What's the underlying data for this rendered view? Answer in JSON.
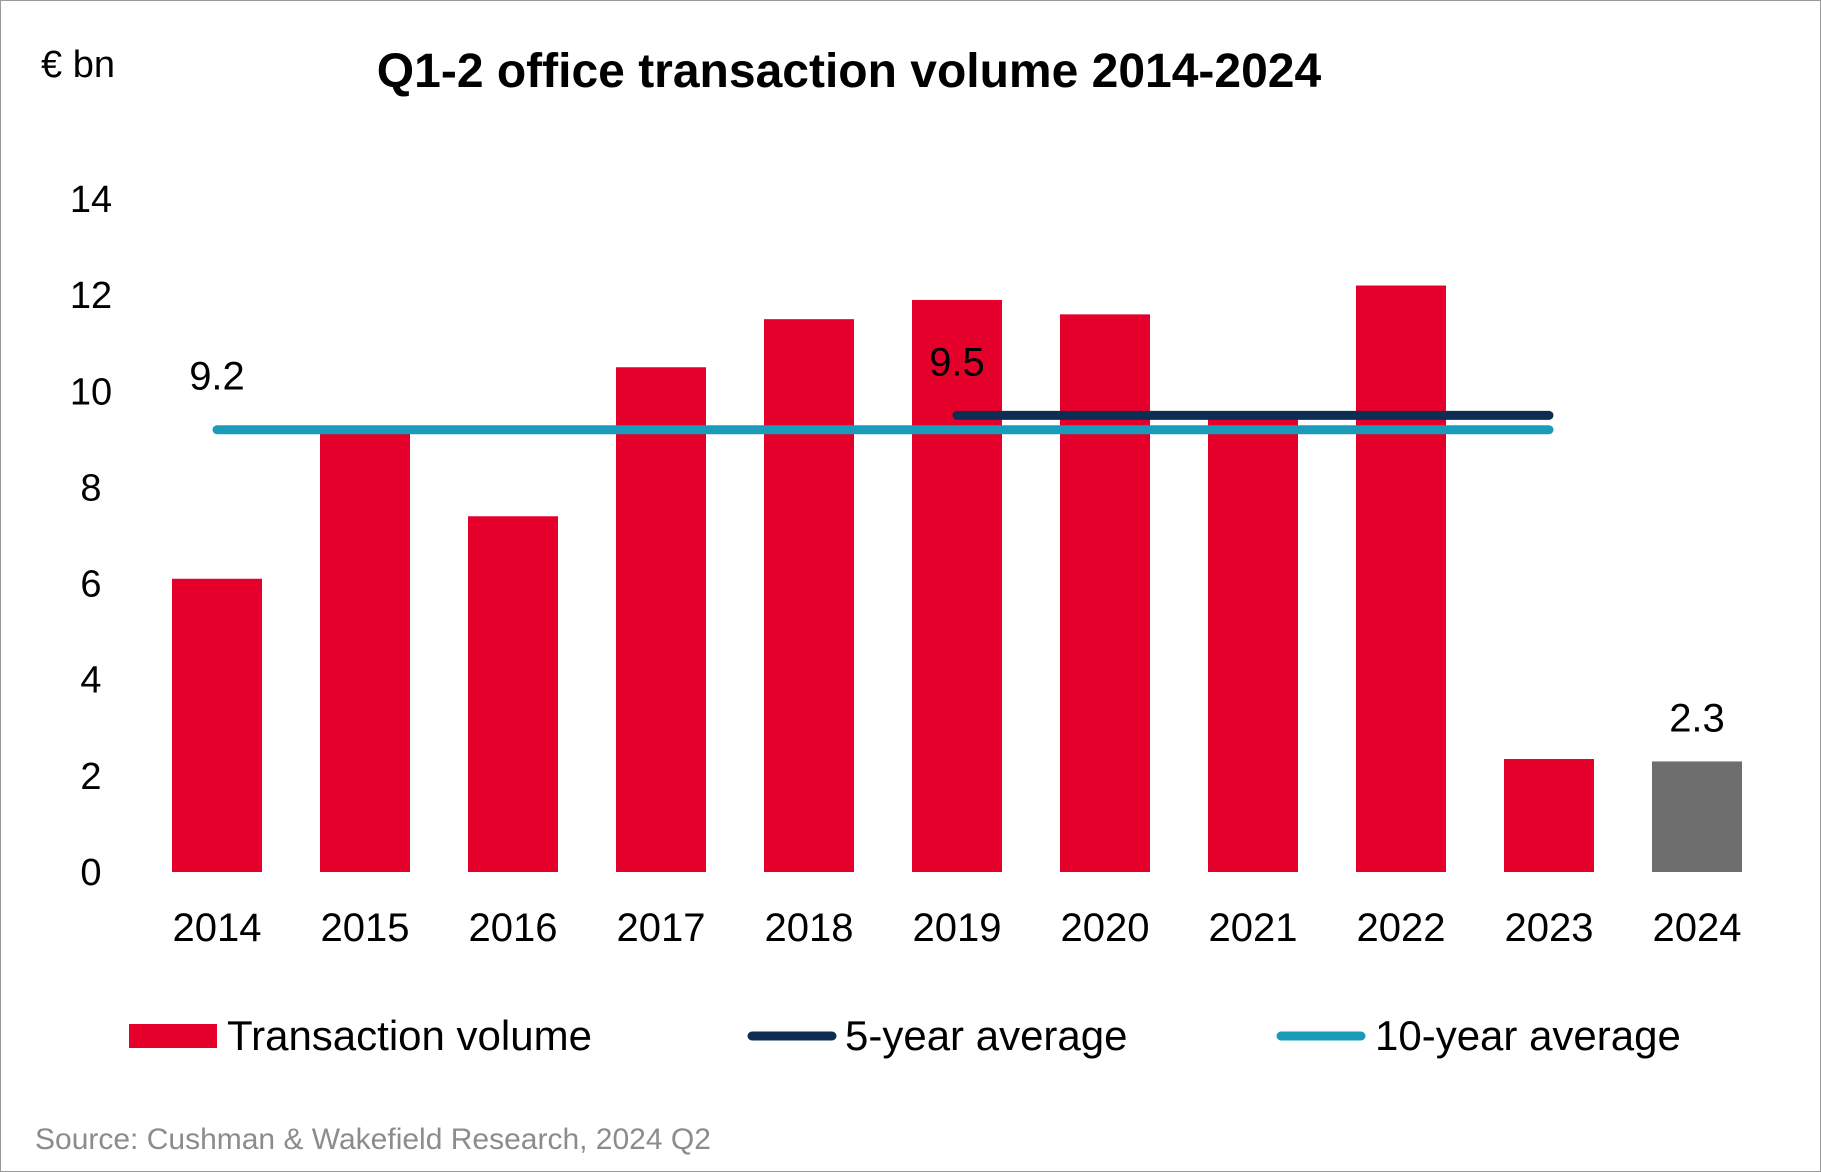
{
  "chart_data": {
    "type": "bar",
    "title": "Q1-2 office transaction volume 2014-2024",
    "unit_label": "€ bn",
    "xlabel": "",
    "ylabel": "€ bn",
    "ylim": [
      0,
      14
    ],
    "yticks": [
      0,
      2,
      4,
      6,
      8,
      10,
      12,
      14
    ],
    "ytick_labels": [
      "0",
      "2",
      "4",
      "6",
      "8",
      "10",
      "12",
      "14"
    ],
    "grid": false,
    "categories": [
      "2014",
      "2015",
      "2016",
      "2017",
      "2018",
      "2019",
      "2020",
      "2021",
      "2022",
      "2023",
      "2024"
    ],
    "series": [
      {
        "name": "Transaction volume",
        "type": "bar",
        "values": [
          6.1,
          9.2,
          7.4,
          10.5,
          11.5,
          11.9,
          11.6,
          9.5,
          12.2,
          2.35,
          2.3
        ],
        "color": "#e4002b",
        "highlight": {
          "category": "2024",
          "color": "#6e6e6e"
        }
      },
      {
        "name": "5-year average",
        "type": "line",
        "value": 9.5,
        "from": "2019",
        "to": "2023",
        "color": "#0e2d52"
      },
      {
        "name": "10-year average",
        "type": "line",
        "value": 9.2,
        "from": "2014",
        "to": "2023",
        "color": "#1a9bb9"
      }
    ],
    "annotations": [
      {
        "text": "9.2",
        "category": "2014",
        "value": 9.2
      },
      {
        "text": "9.5",
        "category": "2019",
        "value": 9.5
      },
      {
        "text": "2.3",
        "category": "2024",
        "value": 2.3
      }
    ],
    "legend": {
      "position": "bottom",
      "items": [
        "Transaction volume",
        "5-year average",
        "10-year average"
      ]
    },
    "source": "Source: Cushman & Wakefield Research, 2024 Q2"
  }
}
